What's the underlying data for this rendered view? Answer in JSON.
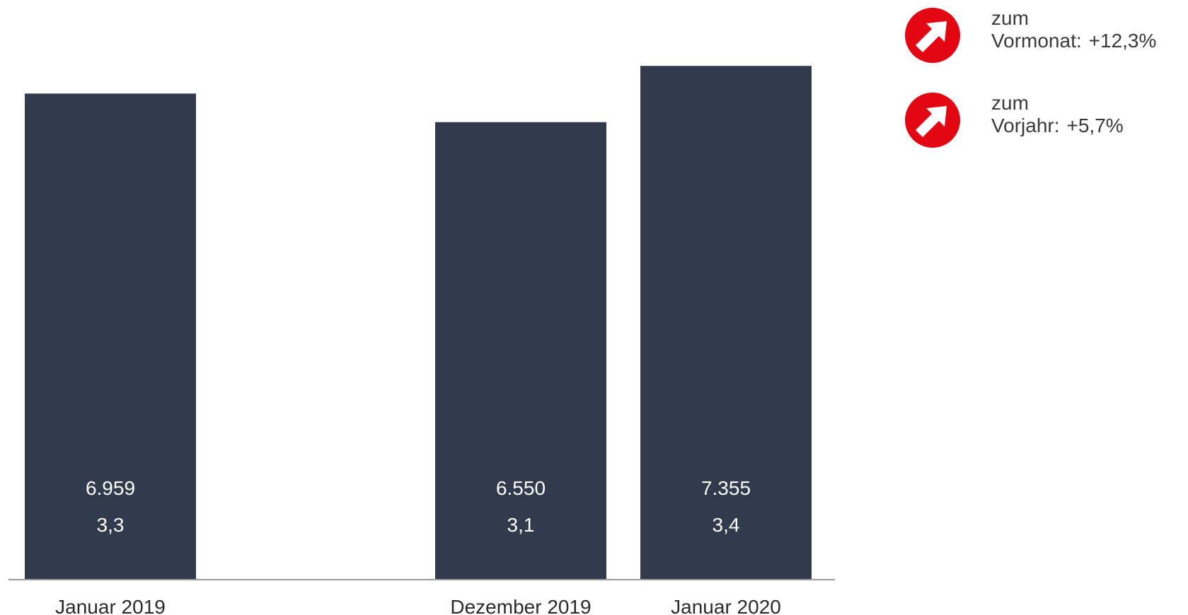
{
  "chart_data": {
    "type": "bar",
    "categories": [
      "Januar 2019",
      "",
      "Dezember 2019",
      "Januar 2020"
    ],
    "values": [
      6959,
      null,
      6550,
      7355
    ],
    "value_labels": [
      "6.959",
      "",
      "6.550",
      "7.355"
    ],
    "secondary_labels": [
      "3,3",
      "",
      "3,1",
      "3,4"
    ],
    "ylim": [
      0,
      7600
    ],
    "grid": false,
    "bar_color": "#323a4d",
    "label_color": "#ffffff"
  },
  "indicators": [
    {
      "icon": "arrow-up-right-icon",
      "line1": "zum",
      "label": "Vormonat:",
      "value": "+12,3%",
      "color": "#e30613"
    },
    {
      "icon": "arrow-up-right-icon",
      "line1": "zum",
      "label": "Vorjahr:",
      "value": "+5,7%",
      "color": "#e30613"
    }
  ]
}
